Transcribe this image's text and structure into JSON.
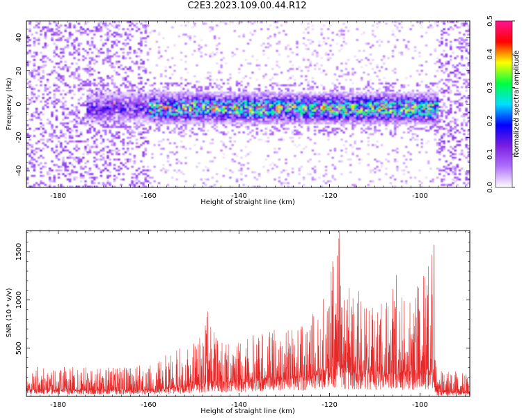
{
  "title": "C2E3.2023.109.00.44.R12",
  "chart_data": [
    {
      "type": "heatmap",
      "xlabel": "Height of straight line (km)",
      "ylabel": "Frequency (Hz)",
      "xlim": [
        -187,
        -89
      ],
      "ylim": [
        -50,
        50
      ],
      "x_ticks": [
        -180,
        -160,
        -140,
        -120,
        -100
      ],
      "x_tick_labels": [
        "-180",
        "-160",
        "-140",
        "-120",
        "-100"
      ],
      "y_ticks": [
        -40,
        -20,
        0,
        20,
        40
      ],
      "y_tick_labels": [
        "-40",
        "-20",
        "0",
        "20",
        "40"
      ],
      "colorbar": {
        "label": "Normalized spectral amplitude",
        "range": [
          0.0,
          0.5
        ],
        "ticks": [
          0.0,
          0.1,
          0.2,
          0.3,
          0.4,
          0.5
        ],
        "tick_labels": [
          "0.0",
          "0.1",
          "0.2",
          "0.3",
          "0.4",
          "0.5"
        ],
        "colors": [
          "#ffffff",
          "#b070ff",
          "#7a1ee0",
          "#0000ff",
          "#00e0ff",
          "#00ff40",
          "#ffff00",
          "#ff0000",
          "#ff1493"
        ]
      },
      "signal_band": {
        "x_range": [
          -160,
          -96
        ],
        "center_frequency": -2,
        "band_width_hz": 10,
        "peak_amplitude": 0.42
      },
      "noise_regions": [
        {
          "x_range": [
            -187,
            -160
          ],
          "level": "high"
        },
        {
          "x_range": [
            -96,
            -89
          ],
          "level": "high"
        }
      ]
    },
    {
      "type": "line",
      "xlabel": "Height of straight line (km)",
      "ylabel": "SNR (10 * v/v)",
      "xlim": [
        -187,
        -89
      ],
      "ylim": [
        0,
        1720
      ],
      "x_ticks": [
        -180,
        -160,
        -140,
        -120,
        -100
      ],
      "x_tick_labels": [
        "-180",
        "-160",
        "-140",
        "-120",
        "-100"
      ],
      "y_ticks": [
        500,
        1000,
        1500
      ],
      "y_tick_labels": [
        "500",
        "1000",
        "1500"
      ],
      "color": "#e62828",
      "envelope": {
        "x": [
          -187,
          -180,
          -170,
          -160,
          -155,
          -150,
          -147,
          -145,
          -140,
          -135,
          -130,
          -125,
          -121,
          -119,
          -118,
          -117,
          -115,
          -112,
          -110,
          -107,
          -105,
          -103,
          -101,
          -99,
          -97.5,
          -96.5,
          -95,
          -92,
          -89
        ],
        "peak": [
          330,
          310,
          300,
          330,
          470,
          560,
          880,
          650,
          600,
          680,
          700,
          800,
          1080,
          1400,
          1720,
          1240,
          1180,
          1080,
          1050,
          1030,
          1260,
          930,
          1200,
          1260,
          1570,
          320,
          300,
          280,
          240
        ],
        "base": [
          70,
          60,
          60,
          60,
          90,
          110,
          140,
          130,
          140,
          170,
          180,
          200,
          250,
          280,
          300,
          260,
          240,
          230,
          220,
          220,
          230,
          220,
          230,
          240,
          240,
          40,
          40,
          40,
          40
        ]
      },
      "notable_peaks": [
        {
          "x": -146.9,
          "y": 880
        },
        {
          "x": -117.8,
          "y": 1720
        },
        {
          "x": -119.3,
          "y": 1400
        },
        {
          "x": -96.9,
          "y": 1570
        },
        {
          "x": -105.2,
          "y": 1260
        },
        {
          "x": -99.2,
          "y": 1250
        }
      ]
    }
  ]
}
